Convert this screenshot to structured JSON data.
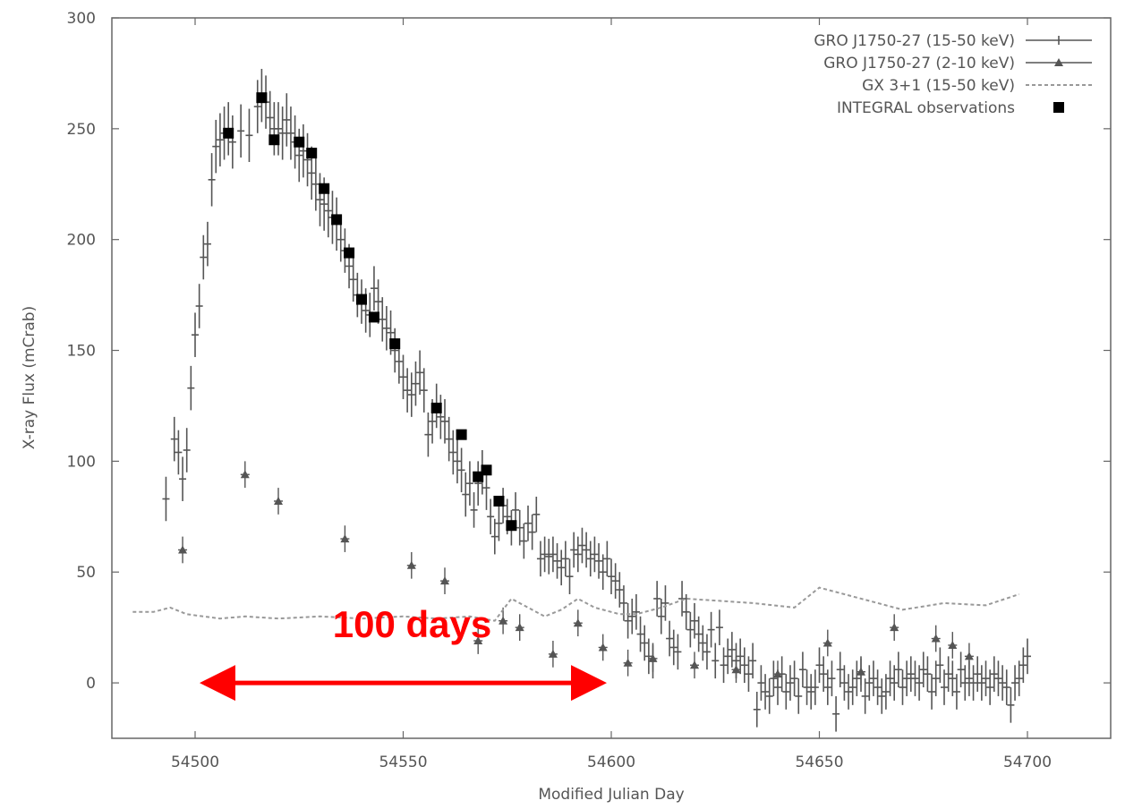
{
  "chart_data": {
    "type": "scatter",
    "title": "",
    "xlabel": "Modified Julian Day",
    "ylabel": "X-ray Flux (mCrab)",
    "xlim": [
      54480,
      54720
    ],
    "ylim": [
      -25,
      300
    ],
    "xticks": [
      54500,
      54550,
      54600,
      54650,
      54700
    ],
    "yticks": [
      0,
      50,
      100,
      150,
      200,
      250,
      300
    ],
    "grid": false,
    "legend_position": "top-right",
    "series": [
      {
        "name": "GRO J1750-27 (15-50 keV)",
        "marker": "cross-errorbar",
        "color": "#555555",
        "points": [
          [
            54493,
            83
          ],
          [
            54495,
            110
          ],
          [
            54496,
            104
          ],
          [
            54497,
            92
          ],
          [
            54498,
            105
          ],
          [
            54499,
            133
          ],
          [
            54500,
            157
          ],
          [
            54501,
            170
          ],
          [
            54502,
            192
          ],
          [
            54503,
            198
          ],
          [
            54504,
            227
          ],
          [
            54505,
            242
          ],
          [
            54506,
            245
          ],
          [
            54507,
            248
          ],
          [
            54508,
            250
          ],
          [
            54509,
            244
          ],
          [
            54511,
            249
          ],
          [
            54513,
            247
          ],
          [
            54515,
            260
          ],
          [
            54516,
            265
          ],
          [
            54517,
            262
          ],
          [
            54518,
            255
          ],
          [
            54519,
            250
          ],
          [
            54520,
            250
          ],
          [
            54521,
            248
          ],
          [
            54522,
            254
          ],
          [
            54523,
            248
          ],
          [
            54524,
            244
          ],
          [
            54525,
            238
          ],
          [
            54526,
            240
          ],
          [
            54527,
            236
          ],
          [
            54528,
            230
          ],
          [
            54529,
            225
          ],
          [
            54530,
            218
          ],
          [
            54531,
            216
          ],
          [
            54532,
            213
          ],
          [
            54533,
            210
          ],
          [
            54534,
            207
          ],
          [
            54535,
            200
          ],
          [
            54536,
            195
          ],
          [
            54537,
            188
          ],
          [
            54538,
            182
          ],
          [
            54539,
            175
          ],
          [
            54540,
            172
          ],
          [
            54541,
            168
          ],
          [
            54542,
            166
          ],
          [
            54543,
            178
          ],
          [
            54544,
            172
          ],
          [
            54545,
            164
          ],
          [
            54546,
            160
          ],
          [
            54547,
            158
          ],
          [
            54548,
            150
          ],
          [
            54549,
            145
          ],
          [
            54550,
            138
          ],
          [
            54551,
            132
          ],
          [
            54552,
            130
          ],
          [
            54553,
            135
          ],
          [
            54554,
            140
          ],
          [
            54555,
            132
          ],
          [
            54556,
            112
          ],
          [
            54557,
            118
          ],
          [
            54558,
            125
          ],
          [
            54559,
            120
          ],
          [
            54560,
            118
          ],
          [
            54561,
            110
          ],
          [
            54562,
            104
          ],
          [
            54563,
            100
          ],
          [
            54564,
            96
          ],
          [
            54565,
            85
          ],
          [
            54566,
            90
          ],
          [
            54567,
            78
          ],
          [
            54568,
            90
          ],
          [
            54569,
            95
          ],
          [
            54570,
            88
          ],
          [
            54571,
            75
          ],
          [
            54572,
            66
          ],
          [
            54573,
            72
          ],
          [
            54574,
            80
          ],
          [
            54575,
            75
          ],
          [
            54576,
            70
          ],
          [
            54577,
            78
          ],
          [
            54578,
            70
          ],
          [
            54579,
            64
          ],
          [
            54580,
            72
          ],
          [
            54581,
            68
          ],
          [
            54582,
            76
          ],
          [
            54583,
            56
          ],
          [
            54584,
            58
          ],
          [
            54585,
            57
          ],
          [
            54586,
            58
          ],
          [
            54587,
            55
          ],
          [
            54588,
            52
          ],
          [
            54589,
            56
          ],
          [
            54590,
            48
          ],
          [
            54591,
            60
          ],
          [
            54592,
            58
          ],
          [
            54593,
            62
          ],
          [
            54594,
            60
          ],
          [
            54595,
            56
          ],
          [
            54596,
            58
          ],
          [
            54597,
            55
          ],
          [
            54598,
            50
          ],
          [
            54599,
            56
          ],
          [
            54600,
            48
          ],
          [
            54601,
            46
          ],
          [
            54602,
            42
          ],
          [
            54603,
            36
          ],
          [
            54604,
            28
          ],
          [
            54605,
            30
          ],
          [
            54606,
            32
          ],
          [
            54607,
            22
          ],
          [
            54608,
            18
          ],
          [
            54609,
            12
          ],
          [
            54610,
            10
          ],
          [
            54611,
            38
          ],
          [
            54612,
            30
          ],
          [
            54613,
            36
          ],
          [
            54614,
            20
          ],
          [
            54615,
            16
          ],
          [
            54616,
            14
          ],
          [
            54617,
            38
          ],
          [
            54618,
            32
          ],
          [
            54619,
            24
          ],
          [
            54620,
            28
          ],
          [
            54621,
            22
          ],
          [
            54622,
            18
          ],
          [
            54623,
            14
          ],
          [
            54624,
            24
          ],
          [
            54625,
            10
          ],
          [
            54626,
            25
          ],
          [
            54627,
            8
          ],
          [
            54628,
            12
          ],
          [
            54629,
            15
          ],
          [
            54630,
            10
          ],
          [
            54631,
            12
          ],
          [
            54632,
            8
          ],
          [
            54633,
            4
          ],
          [
            54634,
            10
          ],
          [
            54635,
            -12
          ],
          [
            54636,
            0
          ],
          [
            54637,
            -4
          ],
          [
            54638,
            -6
          ],
          [
            54639,
            2
          ],
          [
            54640,
            -2
          ],
          [
            54641,
            4
          ],
          [
            54642,
            -4
          ],
          [
            54643,
            0
          ],
          [
            54644,
            2
          ],
          [
            54645,
            -6
          ],
          [
            54646,
            6
          ],
          [
            54647,
            -2
          ],
          [
            54648,
            -4
          ],
          [
            54649,
            -2
          ],
          [
            54650,
            8
          ],
          [
            54651,
            4
          ],
          [
            54652,
            -2
          ],
          [
            54653,
            2
          ],
          [
            54654,
            -14
          ],
          [
            54655,
            6
          ],
          [
            54656,
            0
          ],
          [
            54657,
            -4
          ],
          [
            54658,
            -2
          ],
          [
            54659,
            2
          ],
          [
            54660,
            4
          ],
          [
            54661,
            -6
          ],
          [
            54662,
            0
          ],
          [
            54663,
            2
          ],
          [
            54664,
            -2
          ],
          [
            54665,
            -6
          ],
          [
            54666,
            -4
          ],
          [
            54667,
            2
          ],
          [
            54668,
            0
          ],
          [
            54669,
            6
          ],
          [
            54670,
            -2
          ],
          [
            54671,
            2
          ],
          [
            54672,
            4
          ],
          [
            54673,
            2
          ],
          [
            54674,
            0
          ],
          [
            54675,
            6
          ],
          [
            54676,
            4
          ],
          [
            54677,
            -4
          ],
          [
            54678,
            2
          ],
          [
            54679,
            8
          ],
          [
            54680,
            -2
          ],
          [
            54681,
            4
          ],
          [
            54682,
            2
          ],
          [
            54683,
            -4
          ],
          [
            54684,
            6
          ],
          [
            54685,
            0
          ],
          [
            54686,
            2
          ],
          [
            54687,
            0
          ],
          [
            54688,
            4
          ],
          [
            54689,
            0
          ],
          [
            54690,
            2
          ],
          [
            54691,
            -2
          ],
          [
            54692,
            4
          ],
          [
            54693,
            2
          ],
          [
            54694,
            0
          ],
          [
            54695,
            -2
          ],
          [
            54696,
            -10
          ],
          [
            54697,
            0
          ],
          [
            54698,
            2
          ],
          [
            54699,
            8
          ],
          [
            54700,
            12
          ]
        ]
      },
      {
        "name": "GRO J1750-27  (2-10 keV)",
        "marker": "triangle-errorbar",
        "color": "#555555",
        "points": [
          [
            54497,
            60
          ],
          [
            54512,
            94
          ],
          [
            54520,
            82
          ],
          [
            54536,
            65
          ],
          [
            54552,
            53
          ],
          [
            54560,
            46
          ],
          [
            54568,
            19
          ],
          [
            54574,
            28
          ],
          [
            54578,
            25
          ],
          [
            54586,
            13
          ],
          [
            54592,
            27
          ],
          [
            54598,
            16
          ],
          [
            54604,
            9
          ],
          [
            54610,
            11
          ],
          [
            54620,
            8
          ],
          [
            54630,
            6
          ],
          [
            54640,
            4
          ],
          [
            54652,
            18
          ],
          [
            54660,
            5
          ],
          [
            54668,
            25
          ],
          [
            54678,
            20
          ],
          [
            54682,
            17
          ],
          [
            54686,
            12
          ]
        ]
      },
      {
        "name": "GX 3+1 (15-50 keV)",
        "marker": "dashed-line",
        "color": "#999999",
        "points": [
          [
            54485,
            32
          ],
          [
            54490,
            32
          ],
          [
            54494,
            34
          ],
          [
            54498,
            31
          ],
          [
            54502,
            30
          ],
          [
            54506,
            29
          ],
          [
            54512,
            30
          ],
          [
            54520,
            29
          ],
          [
            54530,
            30
          ],
          [
            54540,
            29
          ],
          [
            54550,
            30
          ],
          [
            54558,
            29
          ],
          [
            54566,
            30
          ],
          [
            54572,
            28
          ],
          [
            54576,
            38
          ],
          [
            54580,
            34
          ],
          [
            54584,
            30
          ],
          [
            54588,
            33
          ],
          [
            54592,
            38
          ],
          [
            54596,
            34
          ],
          [
            54602,
            31
          ],
          [
            54606,
            31
          ],
          [
            54612,
            34
          ],
          [
            54618,
            38
          ],
          [
            54626,
            37
          ],
          [
            54634,
            36
          ],
          [
            54644,
            34
          ],
          [
            54650,
            43
          ],
          [
            54656,
            40
          ],
          [
            54662,
            37
          ],
          [
            54670,
            33
          ],
          [
            54680,
            36
          ],
          [
            54690,
            35
          ],
          [
            54698,
            40
          ]
        ]
      },
      {
        "name": "INTEGRAL observations",
        "marker": "filled-square",
        "color": "#000000",
        "points": [
          [
            54508,
            248
          ],
          [
            54516,
            264
          ],
          [
            54519,
            245
          ],
          [
            54525,
            244
          ],
          [
            54528,
            239
          ],
          [
            54531,
            223
          ],
          [
            54534,
            209
          ],
          [
            54537,
            194
          ],
          [
            54540,
            173
          ],
          [
            54543,
            165
          ],
          [
            54548,
            153
          ],
          [
            54558,
            124
          ],
          [
            54564,
            112
          ],
          [
            54568,
            93
          ],
          [
            54570,
            96
          ],
          [
            54573,
            82
          ],
          [
            54576,
            71
          ]
        ]
      }
    ],
    "annotations": [
      {
        "text": "100 days",
        "color": "#ff0000",
        "x_start": 54500,
        "x_end": 54600,
        "y": 0
      }
    ]
  }
}
